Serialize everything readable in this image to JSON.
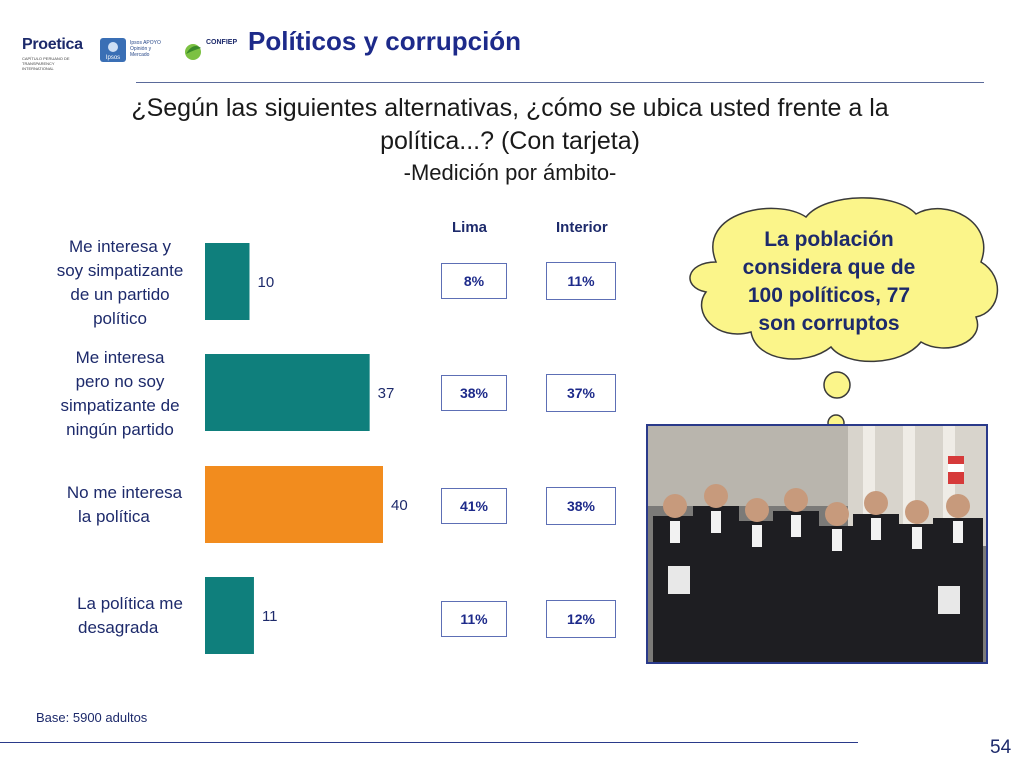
{
  "header": {
    "logo_proetica": "Proetica",
    "logo_proetica_small": "CAPÍTULO PERUANO DE TRANSPARENCY INTERNATIONAL",
    "logo_ipsos_mark": "Ipsos",
    "logo_ipsos_text": "Ipsos APOYO Opinión y Mercado",
    "logo_confiep": "CONFIEP",
    "title": "Políticos y corrupción"
  },
  "question": {
    "line1": "¿Según las siguientes alternativas, ¿cómo se ubica usted frente a la",
    "line2": "política...? (Con tarjeta)",
    "subtitle": "-Medición por ámbito-"
  },
  "columns": {
    "lima": "Lima",
    "interior": "Interior"
  },
  "chart_data": {
    "type": "bar",
    "orientation": "horizontal",
    "categories": [
      "Me interesa y soy simpatizante de un partido político",
      "Me interesa pero no soy simpatizante de ningún partido",
      "No me interesa la política",
      "La política me desagrada"
    ],
    "category_lines": [
      [
        "Me interesa y",
        "soy simpatizante",
        "de un partido",
        "político"
      ],
      [
        "Me interesa",
        "pero no soy",
        "simpatizante de",
        "ningún partido"
      ],
      [
        "No me interesa",
        "la política"
      ],
      [
        "La política me",
        "desagrada"
      ]
    ],
    "values": [
      10,
      37,
      40,
      11
    ],
    "bar_colors": [
      "#0f7f7c",
      "#0f7f7c",
      "#f28c1e",
      "#0f7f7c"
    ],
    "xlim": [
      0,
      100
    ],
    "lima": [
      "8%",
      "38%",
      "41%",
      "11%"
    ],
    "interior": [
      "11%",
      "37%",
      "38%",
      "12%"
    ]
  },
  "callout": {
    "lines": [
      "La población",
      "considera que de",
      "100 políticos, 77",
      "son corruptos"
    ]
  },
  "footer": {
    "base": "Base: 5900 adultos",
    "page": "54"
  },
  "colors": {
    "accent_blue": "#1d2a8a",
    "teal": "#0f7f7c",
    "orange": "#f28c1e",
    "cloud": "#fbf58a"
  }
}
